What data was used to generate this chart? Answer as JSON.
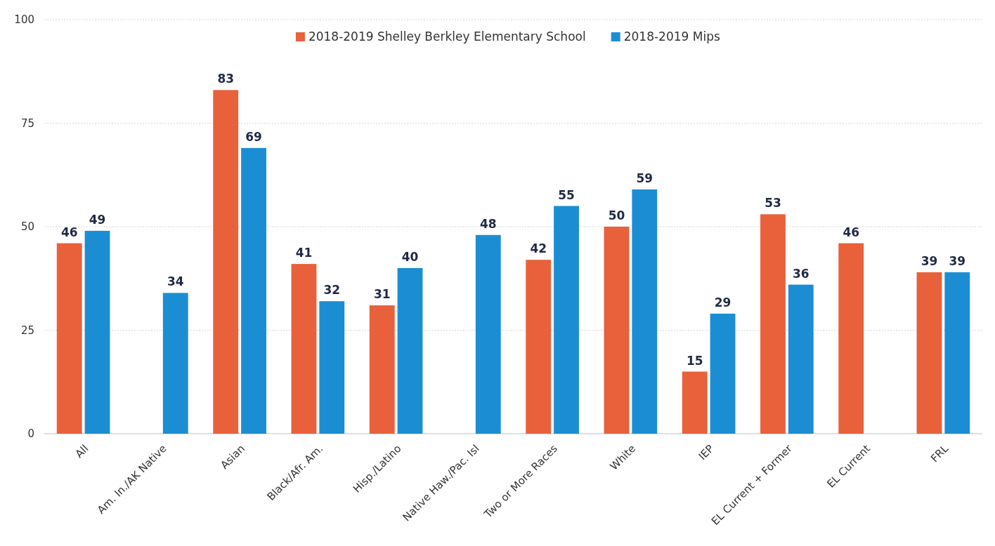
{
  "chart_data": {
    "type": "bar",
    "categories": [
      "All",
      "Am. In./AK Native",
      "Asian",
      "Black/Afr. Am.",
      "Hisp./Latino",
      "Native Haw./Pac. Isl",
      "Two or More Races",
      "White",
      "IEP",
      "EL Current + Former",
      "EL Current",
      "FRL"
    ],
    "series": [
      {
        "name": "2018-2019 Shelley Berkley Elementary School",
        "color": "#e8613a",
        "values": [
          46,
          null,
          83,
          41,
          31,
          null,
          42,
          50,
          15,
          53,
          46,
          39
        ]
      },
      {
        "name": "2018-2019 Mips",
        "color": "#1b8ed3",
        "values": [
          49,
          34,
          69,
          32,
          40,
          48,
          55,
          59,
          29,
          36,
          null,
          39
        ]
      }
    ],
    "ylim": [
      0,
      100
    ],
    "yticks": [
      0,
      25,
      50,
      75,
      100
    ],
    "grid": "y",
    "legend": "top",
    "data_labels": true
  }
}
